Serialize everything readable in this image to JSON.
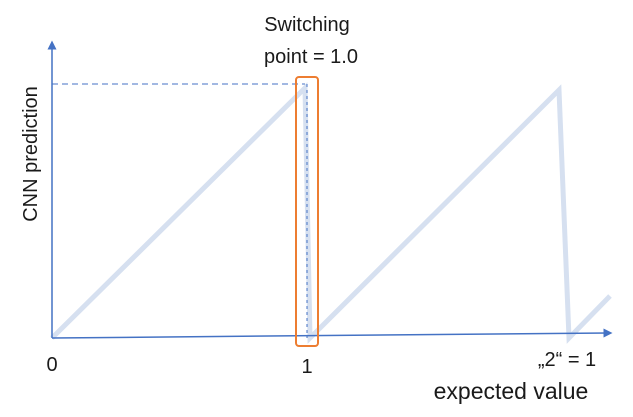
{
  "annotation": {
    "line1": "Switching",
    "line2": "point = 1.0"
  },
  "axes": {
    "ylabel": "CNN prediction",
    "xlabel": "expected value",
    "tick_labels": [
      "0",
      "1",
      "„2“ = 1"
    ]
  },
  "colors": {
    "axis": "#4472c4",
    "sawtooth": "#d6e0f0",
    "highlight": "#ed7d31",
    "guide": "#4472c4",
    "text": "#1a1a1a"
  }
}
